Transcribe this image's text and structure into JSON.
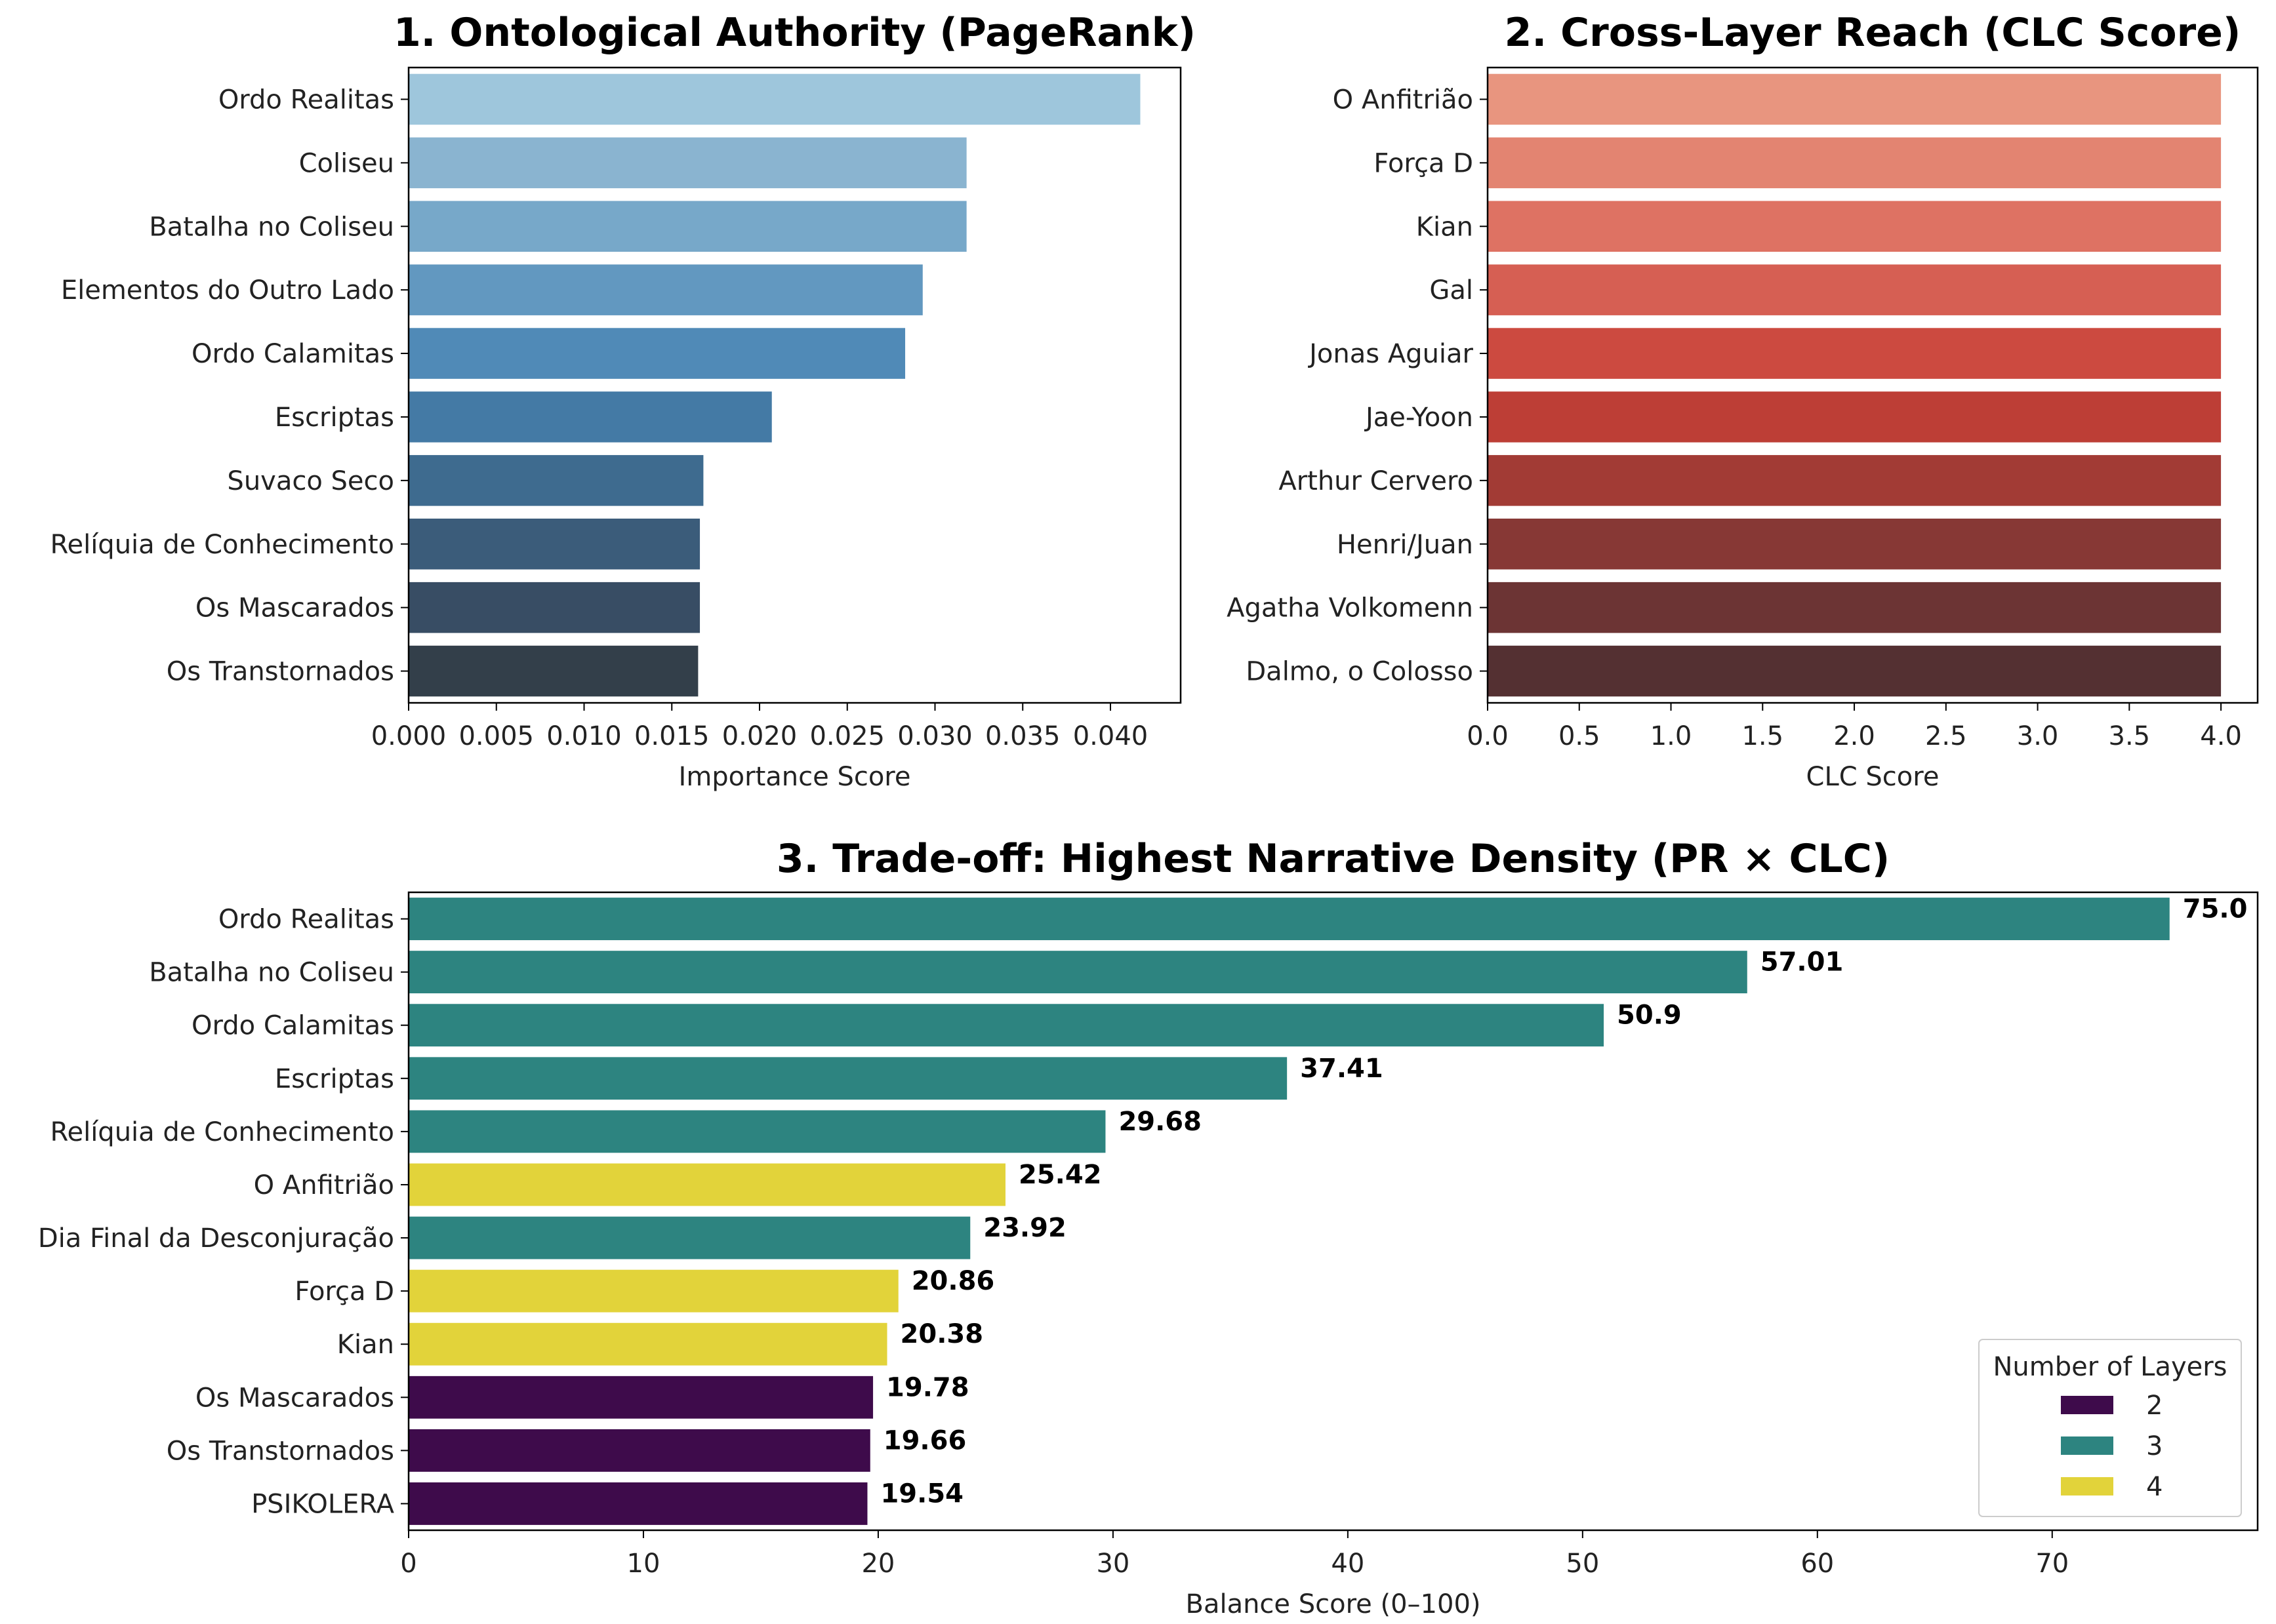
{
  "chart_data": [
    {
      "type": "bar",
      "orientation": "horizontal",
      "title": "1. Ontological Authority (PageRank)",
      "xlabel": "Importance Score",
      "ylabel": "",
      "xlim": [
        0,
        0.044
      ],
      "xticks": [
        "0.000",
        "0.005",
        "0.010",
        "0.015",
        "0.020",
        "0.025",
        "0.030",
        "0.035",
        "0.040"
      ],
      "categories": [
        "Ordo Realitas",
        "Coliseu",
        "Batalha no Coliseu",
        "Elementos do Outro Lado",
        "Ordo Calamitas",
        "Escriptas",
        "Suvaco Seco",
        "Relíquia de Conhecimento",
        "Os Mascarados",
        "Os Transtornados"
      ],
      "values": [
        0.0417,
        0.0318,
        0.0318,
        0.0293,
        0.0283,
        0.0207,
        0.0168,
        0.0166,
        0.0166,
        0.0165
      ],
      "colors": [
        "#9ec6dc",
        "#8ab4d0",
        "#77a8c9",
        "#6298c0",
        "#508ab7",
        "#447aa5",
        "#3e6b8f",
        "#3b5c7a",
        "#384d64",
        "#333f4a"
      ],
      "grid": false
    },
    {
      "type": "bar",
      "orientation": "horizontal",
      "title": "2. Cross-Layer Reach (CLC Score)",
      "xlabel": "CLC Score",
      "ylabel": "",
      "xlim": [
        0,
        4.2
      ],
      "xticks": [
        "0.0",
        "0.5",
        "1.0",
        "1.5",
        "2.0",
        "2.5",
        "3.0",
        "3.5",
        "4.0"
      ],
      "categories": [
        "O Anfitrião",
        "Força D",
        "Kian",
        "Gal",
        "Jonas Aguiar",
        "Jae-Yoon",
        "Arthur Cervero",
        "Henri/Juan",
        "Agatha Volkomenn",
        "Dalmo, o Colosso"
      ],
      "values": [
        4.0,
        4.0,
        4.0,
        4.0,
        4.0,
        4.0,
        4.0,
        4.0,
        4.0,
        4.0
      ],
      "colors": [
        "#e8957f",
        "#e38471",
        "#de7263",
        "#d65f53",
        "#cc4a40",
        "#bd3e36",
        "#a23b35",
        "#873835",
        "#6c3434",
        "#543032"
      ],
      "grid": false
    },
    {
      "type": "bar",
      "orientation": "horizontal",
      "title": "3. Trade-off: Highest Narrative Density (PR × CLC)",
      "xlabel": "Balance Score (0–100)",
      "ylabel": "",
      "xlim": [
        0,
        78.75
      ],
      "xticks": [
        "0",
        "10",
        "20",
        "30",
        "40",
        "50",
        "60",
        "70"
      ],
      "categories": [
        "Ordo Realitas",
        "Batalha no Coliseu",
        "Ordo Calamitas",
        "Escriptas",
        "Relíquia de Conhecimento",
        "O Anfitrião",
        "Dia Final da Desconjuração",
        "Força D",
        "Kian",
        "Os Mascarados",
        "Os Transtornados",
        "PSIKOLERA"
      ],
      "values": [
        75.0,
        57.01,
        50.9,
        37.41,
        29.68,
        25.42,
        23.92,
        20.86,
        20.38,
        19.78,
        19.66,
        19.54
      ],
      "value_labels": [
        "75.0",
        "57.01",
        "50.9",
        "37.41",
        "29.68",
        "25.42",
        "23.92",
        "20.86",
        "20.38",
        "19.78",
        "19.66",
        "19.54"
      ],
      "layers": [
        3,
        3,
        3,
        3,
        3,
        4,
        3,
        4,
        4,
        2,
        2,
        2
      ],
      "legend": {
        "title": "Number of Layers",
        "placement": "lower-right",
        "entries": [
          {
            "label": "2",
            "color": "#440154"
          },
          {
            "label": "3",
            "color": "#21918c"
          },
          {
            "label": "4",
            "color": "#fde725"
          }
        ]
      },
      "grid": false
    }
  ]
}
